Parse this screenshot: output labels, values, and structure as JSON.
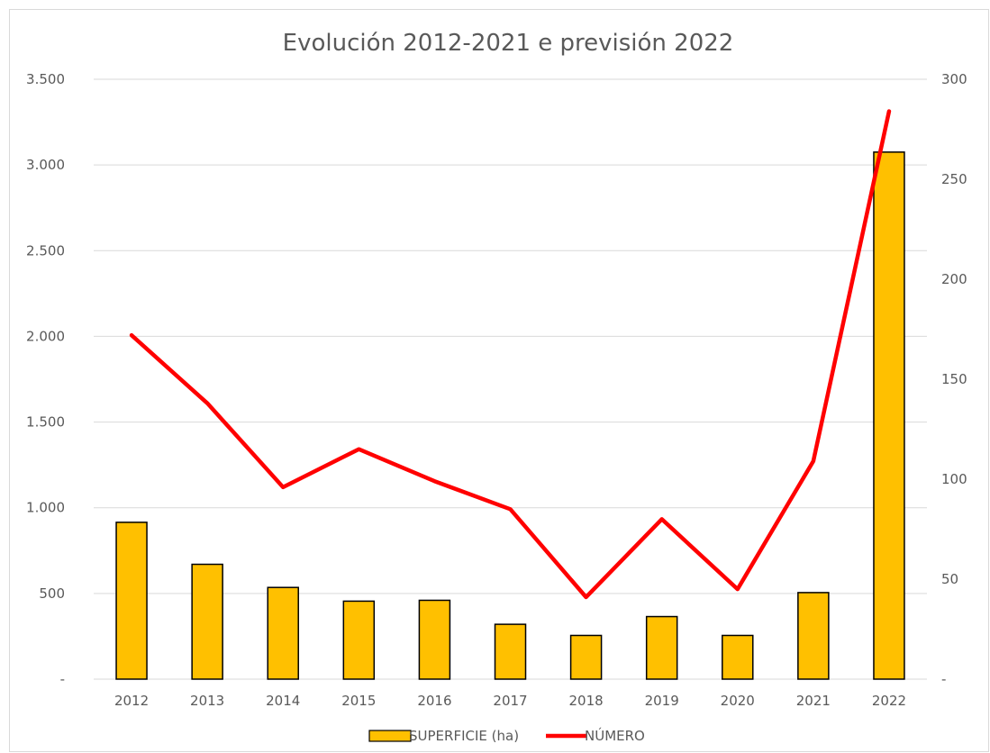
{
  "chart_data": {
    "type": "bar",
    "title": "Evolución 2012-2021 e previsión 2022",
    "categories": [
      "2012",
      "2013",
      "2014",
      "2015",
      "2016",
      "2017",
      "2018",
      "2019",
      "2020",
      "2021",
      "2022"
    ],
    "series": [
      {
        "name": "SUPERFICIE (ha)",
        "type": "bar",
        "axis": "left",
        "color": "#FFC000",
        "values": [
          915,
          670,
          535,
          455,
          460,
          320,
          255,
          365,
          255,
          505,
          3075
        ]
      },
      {
        "name": "NÚMERO",
        "type": "line",
        "axis": "right",
        "color": "#FF0000",
        "values": [
          172,
          138,
          96,
          115,
          99,
          85,
          41,
          80,
          45,
          109,
          284
        ]
      }
    ],
    "y_left": {
      "ylim": [
        0,
        3500
      ],
      "ticks": [
        0,
        500,
        1000,
        1500,
        2000,
        2500,
        3000,
        3500
      ],
      "tick_labels": [
        "-",
        "500",
        "1.000",
        "1.500",
        "2.000",
        "2.500",
        "3.000",
        "3.500"
      ]
    },
    "y_right": {
      "ylim": [
        0,
        300
      ],
      "ticks": [
        0,
        50,
        100,
        150,
        200,
        250,
        300
      ],
      "tick_labels": [
        "-",
        "50",
        "100",
        "150",
        "200",
        "250",
        "300"
      ]
    },
    "grid": true,
    "legend": "bottom"
  }
}
